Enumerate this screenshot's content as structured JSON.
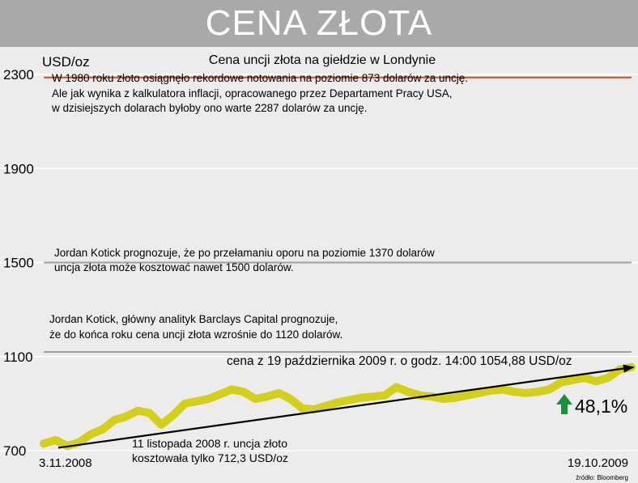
{
  "header": {
    "title": "CENA ZŁOTA"
  },
  "chart_data": {
    "type": "line",
    "title": "Cena uncji złota na giełdzie w Londynie",
    "ylabel": "USD/oz",
    "ylim": [
      700,
      2300
    ],
    "y_ticks": [
      700,
      1100,
      1500,
      1900,
      2300
    ],
    "x_start_label": "3.11.2008",
    "x_end_label": "19.10.2009",
    "grid": true,
    "reference_lines": [
      {
        "value": 2287,
        "color": "#d24a1e"
      },
      {
        "value": 1500,
        "color": "#a0a0a0"
      },
      {
        "value": 1120,
        "color": "#a0a0a0"
      }
    ],
    "annotations": {
      "record": [
        "W 1980 roku złoto osiągnęło rekordowe notowania na poziomie 873 dolarów za uncję.",
        "Ale jak wynika z kalkulatora inflacji, opracowanego przez Departament Pracy USA,",
        "w dzisiejszych dolarach byłoby ono warte 2287 dolarów za uncję."
      ],
      "forecast_1500": [
        "Jordan Kotick prognozuje, że po przełamaniu oporu na poziomie 1370 dolarów",
        "uncja złota może kosztować nawet 1500 dolarów."
      ],
      "forecast_1120": [
        "Jordan Kotick, główny analityk Barclays Capital prognozuje,",
        "że do końca roku cena uncji złota wzrośnie do 1120 dolarów."
      ],
      "current_price": "cena z 19 października 2009 r. o godz. 14:00 1054,88 USD/oz",
      "start_price": [
        "11 listopada 2008 r. uncja złoto",
        "kosztowała tylko 712,3 USD/oz"
      ],
      "change": "48,1%"
    },
    "source": "źródło: Bloomberg",
    "trend": {
      "from": 712.3,
      "to": 1054.88
    },
    "series": [
      {
        "color": "#d4cf1a",
        "x": [
          "2008-11-03",
          "2008-11-10",
          "2008-11-17",
          "2008-11-24",
          "2008-12-01",
          "2008-12-08",
          "2008-12-15",
          "2008-12-22",
          "2008-12-29",
          "2009-01-05",
          "2009-01-12",
          "2009-01-19",
          "2009-01-26",
          "2009-02-02",
          "2009-02-09",
          "2009-02-16",
          "2009-02-23",
          "2009-03-02",
          "2009-03-09",
          "2009-03-16",
          "2009-03-23",
          "2009-03-30",
          "2009-04-06",
          "2009-04-13",
          "2009-04-20",
          "2009-04-27",
          "2009-05-04",
          "2009-05-11",
          "2009-05-18",
          "2009-05-25",
          "2009-06-01",
          "2009-06-08",
          "2009-06-15",
          "2009-06-22",
          "2009-06-29",
          "2009-07-06",
          "2009-07-13",
          "2009-07-20",
          "2009-07-27",
          "2009-08-03",
          "2009-08-10",
          "2009-08-17",
          "2009-08-24",
          "2009-08-31",
          "2009-09-07",
          "2009-09-14",
          "2009-09-21",
          "2009-09-28",
          "2009-10-05",
          "2009-10-12",
          "2009-10-19"
        ],
        "values": [
          730,
          745,
          720,
          735,
          770,
          790,
          830,
          845,
          870,
          860,
          810,
          850,
          900,
          910,
          920,
          940,
          960,
          950,
          920,
          930,
          945,
          920,
          880,
          875,
          890,
          905,
          915,
          925,
          930,
          935,
          970,
          950,
          935,
          930,
          920,
          925,
          935,
          945,
          955,
          960,
          950,
          945,
          950,
          960,
          990,
          1000,
          1010,
          995,
          1010,
          1045,
          1055
        ]
      }
    ]
  }
}
